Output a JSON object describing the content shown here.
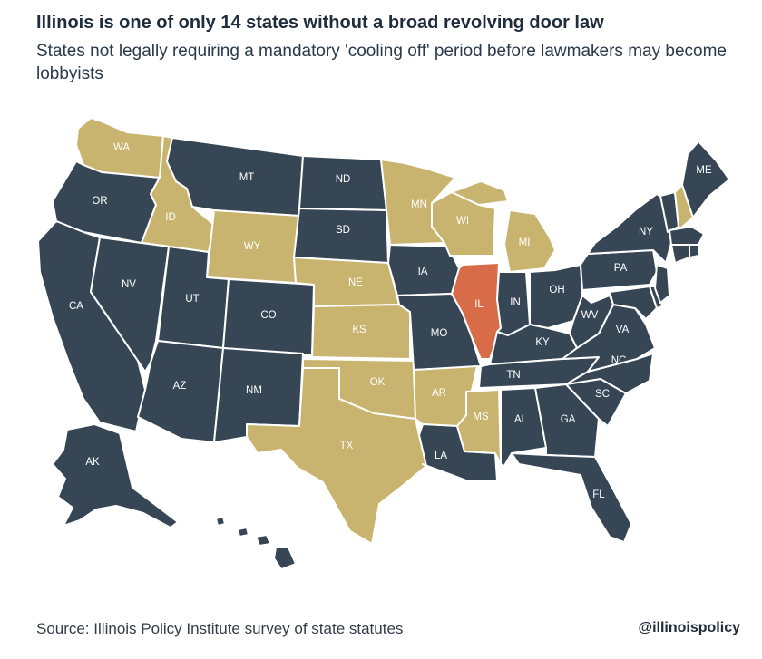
{
  "header": {
    "title": "Illinois is one of only 14 states without a broad revolving door law",
    "subtitle": "States not legally requiring a mandatory 'cooling off' period before lawmakers may become lobbyists"
  },
  "colors": {
    "with_law": "#364655",
    "without_law": "#c8b46e",
    "illinois": "#d86b48",
    "border": "#ffffff"
  },
  "map": {
    "states": [
      {
        "code": "WA",
        "category": "without_law"
      },
      {
        "code": "OR",
        "category": "with_law"
      },
      {
        "code": "CA",
        "category": "with_law"
      },
      {
        "code": "ID",
        "category": "without_law"
      },
      {
        "code": "NV",
        "category": "with_law"
      },
      {
        "code": "MT",
        "category": "with_law"
      },
      {
        "code": "WY",
        "category": "without_law"
      },
      {
        "code": "UT",
        "category": "with_law"
      },
      {
        "code": "AZ",
        "category": "with_law"
      },
      {
        "code": "CO",
        "category": "with_law"
      },
      {
        "code": "NM",
        "category": "with_law"
      },
      {
        "code": "ND",
        "category": "with_law"
      },
      {
        "code": "SD",
        "category": "with_law"
      },
      {
        "code": "NE",
        "category": "without_law"
      },
      {
        "code": "KS",
        "category": "without_law"
      },
      {
        "code": "OK",
        "category": "without_law"
      },
      {
        "code": "TX",
        "category": "without_law"
      },
      {
        "code": "MN",
        "category": "without_law"
      },
      {
        "code": "IA",
        "category": "with_law"
      },
      {
        "code": "MO",
        "category": "with_law"
      },
      {
        "code": "AR",
        "category": "without_law"
      },
      {
        "code": "LA",
        "category": "with_law"
      },
      {
        "code": "WI",
        "category": "without_law"
      },
      {
        "code": "IL",
        "category": "illinois"
      },
      {
        "code": "MI",
        "category": "without_law"
      },
      {
        "code": "IN",
        "category": "with_law"
      },
      {
        "code": "OH",
        "category": "with_law"
      },
      {
        "code": "KY",
        "category": "with_law"
      },
      {
        "code": "TN",
        "category": "with_law"
      },
      {
        "code": "MS",
        "category": "without_law"
      },
      {
        "code": "AL",
        "category": "with_law"
      },
      {
        "code": "GA",
        "category": "with_law"
      },
      {
        "code": "FL",
        "category": "with_law"
      },
      {
        "code": "SC",
        "category": "with_law"
      },
      {
        "code": "NC",
        "category": "with_law"
      },
      {
        "code": "VA",
        "category": "with_law"
      },
      {
        "code": "WV",
        "category": "with_law"
      },
      {
        "code": "PA",
        "category": "with_law"
      },
      {
        "code": "NY",
        "category": "with_law"
      },
      {
        "code": "NJ",
        "category": "with_law"
      },
      {
        "code": "DE",
        "category": "with_law"
      },
      {
        "code": "MD",
        "category": "with_law"
      },
      {
        "code": "VT",
        "category": "with_law"
      },
      {
        "code": "NH",
        "category": "without_law"
      },
      {
        "code": "ME",
        "category": "with_law"
      },
      {
        "code": "MA",
        "category": "with_law"
      },
      {
        "code": "CT",
        "category": "with_law"
      },
      {
        "code": "RI",
        "category": "with_law"
      },
      {
        "code": "AK",
        "category": "with_law"
      },
      {
        "code": "HI",
        "category": "with_law"
      }
    ]
  },
  "footer": {
    "source": "Source: Illinois Policy Institute survey of state statutes",
    "handle": "@illinoispolicy"
  }
}
